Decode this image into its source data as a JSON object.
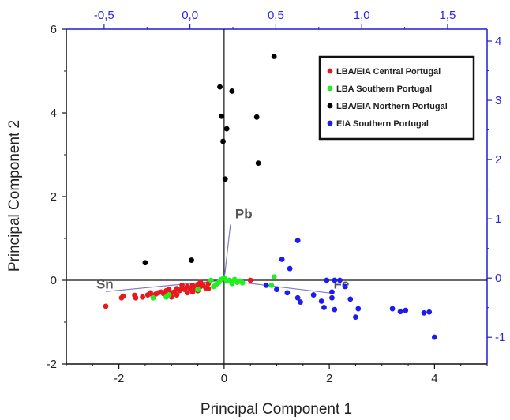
{
  "chart_data": {
    "type": "scatter",
    "title": "",
    "xlabel": "Principal Component 1",
    "ylabel": "Principal Component 2",
    "xlim": [
      -3,
      5
    ],
    "ylim": [
      -2,
      6
    ],
    "x_ticks": [
      "-2",
      "0",
      "2",
      "4"
    ],
    "y_ticks": [
      "-2",
      "0",
      "2",
      "4",
      "6"
    ],
    "x_tick_values": [
      -2,
      0,
      2,
      4
    ],
    "y_tick_values": [
      -2,
      0,
      2,
      4,
      6
    ],
    "top_axis": {
      "color": "#1f1fd6",
      "lim": [
        -0.72,
        1.73
      ],
      "ticks": [
        "-0,5",
        "0,0",
        "0,5",
        "1,0",
        "1,5"
      ],
      "tick_values": [
        -0.5,
        0.0,
        0.5,
        1.0,
        1.5
      ]
    },
    "right_axis": {
      "color": "#1f1fd6",
      "lim": [
        -1.45,
        4.2
      ],
      "ticks": [
        "-1",
        "0",
        "1",
        "2",
        "3",
        "4"
      ],
      "tick_values": [
        -1,
        0,
        1,
        2,
        3,
        4
      ]
    },
    "legend_position": "top-right",
    "grid": false,
    "series": [
      {
        "name": "LBA/EIA Central Portugal",
        "color": "#e8191c",
        "points": [
          [
            -2.25,
            -0.62
          ],
          [
            -1.95,
            -0.42
          ],
          [
            -1.92,
            -0.38
          ],
          [
            -1.7,
            -0.36
          ],
          [
            -1.68,
            -0.42
          ],
          [
            -1.55,
            -0.4
          ],
          [
            -1.45,
            -0.35
          ],
          [
            -1.4,
            -0.3
          ],
          [
            -1.35,
            -0.37
          ],
          [
            -1.3,
            -0.33
          ],
          [
            -1.25,
            -0.3
          ],
          [
            -1.2,
            -0.28
          ],
          [
            -1.15,
            -0.32
          ],
          [
            -1.1,
            -0.25
          ],
          [
            -1.05,
            -0.22
          ],
          [
            -1.0,
            -0.3
          ],
          [
            -0.95,
            -0.28
          ],
          [
            -0.9,
            -0.2
          ],
          [
            -0.85,
            -0.25
          ],
          [
            -0.8,
            -0.18
          ],
          [
            -0.75,
            -0.22
          ],
          [
            -0.7,
            -0.15
          ],
          [
            -0.65,
            -0.2
          ],
          [
            -0.6,
            -0.12
          ],
          [
            -0.55,
            -0.18
          ],
          [
            -0.5,
            -0.1
          ],
          [
            -0.45,
            -0.15
          ],
          [
            -0.4,
            -0.12
          ],
          [
            -0.35,
            -0.18
          ],
          [
            -0.3,
            -0.08
          ],
          [
            -1.0,
            -0.4
          ],
          [
            -0.9,
            -0.35
          ],
          [
            -0.7,
            -0.3
          ],
          [
            -0.5,
            -0.25
          ],
          [
            -0.3,
            -0.2
          ],
          [
            -0.8,
            -0.12
          ],
          [
            -0.6,
            -0.28
          ],
          [
            -0.45,
            -0.05
          ],
          [
            0.5,
            0.0
          ]
        ]
      },
      {
        "name": "LBA Southern Portugal",
        "color": "#22ee22",
        "points": [
          [
            -1.35,
            -0.42
          ],
          [
            -1.1,
            -0.4
          ],
          [
            -1.05,
            -0.35
          ],
          [
            -0.5,
            -0.22
          ],
          [
            -0.2,
            -0.15
          ],
          [
            -0.1,
            -0.05
          ],
          [
            -0.05,
            0.02
          ],
          [
            0.0,
            0.06
          ],
          [
            0.05,
            -0.02
          ],
          [
            0.1,
            0.0
          ],
          [
            0.15,
            -0.08
          ],
          [
            0.2,
            0.02
          ],
          [
            0.25,
            -0.05
          ],
          [
            0.3,
            -0.02
          ],
          [
            -0.25,
            0.0
          ],
          [
            0.9,
            -0.12
          ],
          [
            0.95,
            0.08
          ],
          [
            -0.15,
            -0.1
          ],
          [
            0.35,
            -0.06
          ]
        ]
      },
      {
        "name": "LBA/EIA Northern Portugal",
        "color": "#000000",
        "points": [
          [
            0.95,
            5.35
          ],
          [
            -0.08,
            4.62
          ],
          [
            0.15,
            4.52
          ],
          [
            -0.05,
            3.92
          ],
          [
            0.62,
            3.9
          ],
          [
            0.05,
            3.62
          ],
          [
            -0.02,
            3.32
          ],
          [
            0.65,
            2.8
          ],
          [
            0.02,
            2.42
          ],
          [
            -1.5,
            0.42
          ],
          [
            -0.62,
            0.48
          ]
        ]
      },
      {
        "name": "EIA Southern Portugal",
        "color": "#1c1cf0",
        "points": [
          [
            1.4,
            0.95
          ],
          [
            1.1,
            0.5
          ],
          [
            1.25,
            0.28
          ],
          [
            1.95,
            0.0
          ],
          [
            2.1,
            0.0
          ],
          [
            2.2,
            0.0
          ],
          [
            0.8,
            -0.12
          ],
          [
            1.0,
            -0.22
          ],
          [
            1.2,
            -0.3
          ],
          [
            1.4,
            -0.42
          ],
          [
            1.45,
            -0.52
          ],
          [
            1.85,
            -0.5
          ],
          [
            1.9,
            -0.65
          ],
          [
            2.05,
            -0.28
          ],
          [
            2.05,
            -0.42
          ],
          [
            2.3,
            -0.15
          ],
          [
            2.4,
            -0.45
          ],
          [
            2.5,
            -0.88
          ],
          [
            2.55,
            -0.68
          ],
          [
            3.2,
            -0.68
          ],
          [
            3.35,
            -0.75
          ],
          [
            3.45,
            -0.72
          ],
          [
            3.8,
            -0.78
          ],
          [
            3.9,
            -0.76
          ],
          [
            4.0,
            -1.36
          ],
          [
            2.1,
            -0.7
          ],
          [
            1.7,
            -0.35
          ]
        ]
      }
    ],
    "loadings": [
      {
        "label": "Pb",
        "x": 0.12,
        "y": 1.33
      },
      {
        "label": "Sn",
        "x": -2.25,
        "y": -0.27
      },
      {
        "label": "Fe",
        "x": 2.05,
        "y": -0.31
      }
    ]
  }
}
